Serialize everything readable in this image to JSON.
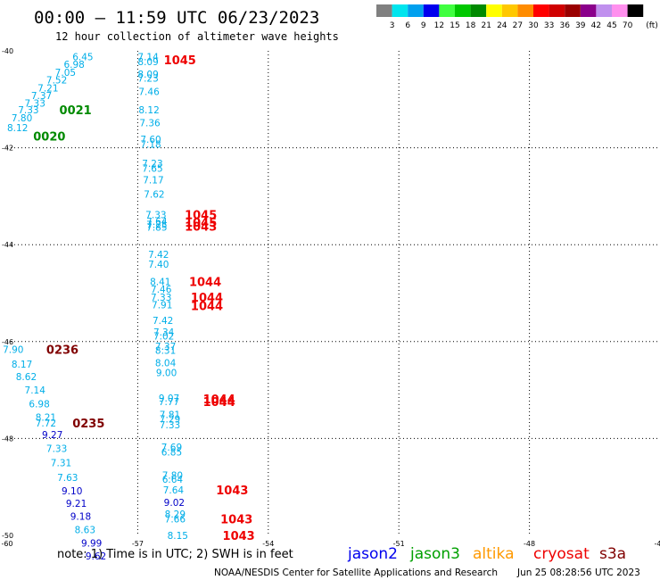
{
  "header": {
    "title": "00:00 – 11:59 UTC 06/23/2023",
    "subtitle": "12 hour collection of altimeter wave heights"
  },
  "legend_scale": {
    "unit": "(ft)",
    "entries": [
      {
        "label": "3",
        "color": "#808080"
      },
      {
        "label": "6",
        "color": "#00e5ee"
      },
      {
        "label": "9",
        "color": "#00a0ee"
      },
      {
        "label": "12",
        "color": "#0000ee"
      },
      {
        "label": "15",
        "color": "#40ff40"
      },
      {
        "label": "18",
        "color": "#00c800"
      },
      {
        "label": "21",
        "color": "#008a00"
      },
      {
        "label": "24",
        "color": "#ffff00"
      },
      {
        "label": "27",
        "color": "#ffc800"
      },
      {
        "label": "30",
        "color": "#ff8c00"
      },
      {
        "label": "33",
        "color": "#ff0000"
      },
      {
        "label": "36",
        "color": "#d00000"
      },
      {
        "label": "39",
        "color": "#9a0000"
      },
      {
        "label": "42",
        "color": "#8b008b"
      },
      {
        "label": "45",
        "color": "#c090ee"
      },
      {
        "label": "70",
        "color": "#ff90ee"
      },
      {
        "label": "",
        "color": "#000000"
      }
    ]
  },
  "satellites": [
    {
      "name": "jason2",
      "color": "#0000ee"
    },
    {
      "name": "jason3",
      "color": "#00a000"
    },
    {
      "name": "altika",
      "color": "#ff9900"
    },
    {
      "name": "cryosat",
      "color": "#ee0000"
    },
    {
      "name": "s3a",
      "color": "#800000"
    }
  ],
  "footer": {
    "note": "note:  1) Time is in UTC; 2) SWH is in feet",
    "credit": "NOAA/NESDIS Center for Satellite Applications and Research",
    "timestamp": "Jun 25 08:28:56 UTC 2023"
  },
  "chart_data": {
    "type": "scatter",
    "title": "00:00 – 11:59 UTC 06/23/2023",
    "subtitle": "12 hour collection of altimeter wave heights",
    "unit": "ft",
    "x_ticks": [
      "-60",
      "-57",
      "-54",
      "-51",
      "-48",
      "-45"
    ],
    "y_ticks": [
      "-40",
      "-42",
      "-44",
      "-46",
      "-48",
      "-50"
    ],
    "xlim": [
      -60,
      -45
    ],
    "ylim": [
      -50,
      -40
    ],
    "grid": true,
    "colors": {
      "cyan": "#00aee8",
      "blue": "#0000c8",
      "green": "#008a00",
      "red": "#ee0000",
      "maroon": "#800000"
    },
    "points": [
      {
        "lon": -58.5,
        "lat": -40.12,
        "v": "6.45",
        "c": "cyan"
      },
      {
        "lon": -58.7,
        "lat": -40.28,
        "v": "6.98",
        "c": "cyan"
      },
      {
        "lon": -58.9,
        "lat": -40.44,
        "v": "7.05",
        "c": "cyan"
      },
      {
        "lon": -59.1,
        "lat": -40.6,
        "v": "7.52",
        "c": "cyan"
      },
      {
        "lon": -59.3,
        "lat": -40.76,
        "v": "7.21",
        "c": "cyan"
      },
      {
        "lon": -59.45,
        "lat": -40.92,
        "v": "7.37",
        "c": "cyan"
      },
      {
        "lon": -59.6,
        "lat": -41.08,
        "v": "7.33",
        "c": "cyan"
      },
      {
        "lon": -59.75,
        "lat": -41.22,
        "v": "7.33",
        "c": "cyan"
      },
      {
        "lon": -59.9,
        "lat": -41.38,
        "v": "7.80",
        "c": "cyan"
      },
      {
        "lon": -60.0,
        "lat": -41.58,
        "v": "8.12",
        "c": "cyan"
      },
      {
        "lon": -57.0,
        "lat": -40.12,
        "v": "7.14",
        "c": "cyan"
      },
      {
        "lon": -57.0,
        "lat": -40.22,
        "v": "8.09",
        "c": "cyan"
      },
      {
        "lon": -57.0,
        "lat": -40.48,
        "v": "8.09",
        "c": "cyan"
      },
      {
        "lon": -57.0,
        "lat": -40.56,
        "v": "7.23",
        "c": "cyan"
      },
      {
        "lon": -56.98,
        "lat": -40.84,
        "v": "7.46",
        "c": "cyan"
      },
      {
        "lon": -56.98,
        "lat": -41.22,
        "v": "8.12",
        "c": "cyan"
      },
      {
        "lon": -56.96,
        "lat": -41.48,
        "v": "7.36",
        "c": "cyan"
      },
      {
        "lon": -56.94,
        "lat": -41.82,
        "v": "7.60",
        "c": "cyan"
      },
      {
        "lon": -56.94,
        "lat": -41.92,
        "v": "7.18",
        "c": "cyan"
      },
      {
        "lon": -56.9,
        "lat": -42.32,
        "v": "7.23",
        "c": "cyan"
      },
      {
        "lon": -56.9,
        "lat": -42.42,
        "v": "7.65",
        "c": "cyan"
      },
      {
        "lon": -56.88,
        "lat": -42.66,
        "v": "7.17",
        "c": "cyan"
      },
      {
        "lon": -56.86,
        "lat": -42.96,
        "v": "7.62",
        "c": "cyan"
      },
      {
        "lon": -56.82,
        "lat": -43.38,
        "v": "7.33",
        "c": "cyan"
      },
      {
        "lon": -56.8,
        "lat": -43.52,
        "v": "7.64",
        "c": "cyan"
      },
      {
        "lon": -56.8,
        "lat": -43.58,
        "v": "7.25",
        "c": "cyan"
      },
      {
        "lon": -56.8,
        "lat": -43.64,
        "v": "7.85",
        "c": "cyan"
      },
      {
        "lon": -56.76,
        "lat": -44.2,
        "v": "7.42",
        "c": "cyan"
      },
      {
        "lon": -56.76,
        "lat": -44.4,
        "v": "7.40",
        "c": "cyan"
      },
      {
        "lon": -56.72,
        "lat": -44.76,
        "v": "8.41",
        "c": "cyan"
      },
      {
        "lon": -56.7,
        "lat": -44.92,
        "v": "7.46",
        "c": "cyan"
      },
      {
        "lon": -56.7,
        "lat": -45.08,
        "v": "7.33",
        "c": "cyan"
      },
      {
        "lon": -56.68,
        "lat": -45.24,
        "v": "7.91",
        "c": "cyan"
      },
      {
        "lon": -56.66,
        "lat": -45.56,
        "v": "7.42",
        "c": "cyan"
      },
      {
        "lon": -56.64,
        "lat": -45.8,
        "v": "7.34",
        "c": "cyan"
      },
      {
        "lon": -56.64,
        "lat": -45.88,
        "v": "7.02",
        "c": "cyan"
      },
      {
        "lon": -56.6,
        "lat": -46.1,
        "v": "7.37",
        "c": "cyan"
      },
      {
        "lon": -56.6,
        "lat": -46.18,
        "v": "8.31",
        "c": "cyan"
      },
      {
        "lon": -56.6,
        "lat": -46.44,
        "v": "8.04",
        "c": "cyan"
      },
      {
        "lon": -56.58,
        "lat": -46.64,
        "v": "9.00",
        "c": "cyan"
      },
      {
        "lon": -56.52,
        "lat": -47.16,
        "v": "9.07",
        "c": "cyan"
      },
      {
        "lon": -56.52,
        "lat": -47.24,
        "v": "7.77",
        "c": "cyan"
      },
      {
        "lon": -56.5,
        "lat": -47.5,
        "v": "7.81",
        "c": "cyan"
      },
      {
        "lon": -56.5,
        "lat": -47.6,
        "v": "7.29",
        "c": "cyan"
      },
      {
        "lon": -56.5,
        "lat": -47.72,
        "v": "7.33",
        "c": "cyan"
      },
      {
        "lon": -56.46,
        "lat": -48.18,
        "v": "7.69",
        "c": "cyan"
      },
      {
        "lon": -56.46,
        "lat": -48.28,
        "v": "6.85",
        "c": "cyan"
      },
      {
        "lon": -56.44,
        "lat": -48.76,
        "v": "7.80",
        "c": "cyan"
      },
      {
        "lon": -56.44,
        "lat": -48.84,
        "v": "6.64",
        "c": "cyan"
      },
      {
        "lon": -56.42,
        "lat": -49.06,
        "v": "7.64",
        "c": "cyan"
      },
      {
        "lon": -56.4,
        "lat": -49.32,
        "v": "9.02",
        "c": "blue"
      },
      {
        "lon": -56.38,
        "lat": -49.56,
        "v": "8.29",
        "c": "cyan"
      },
      {
        "lon": -56.38,
        "lat": -49.66,
        "v": "7.66",
        "c": "cyan"
      },
      {
        "lon": -56.32,
        "lat": -50.0,
        "v": "8.15",
        "c": "cyan"
      },
      {
        "lon": -60.1,
        "lat": -46.16,
        "v": "7.90",
        "c": "cyan"
      },
      {
        "lon": -59.9,
        "lat": -46.46,
        "v": "8.17",
        "c": "cyan"
      },
      {
        "lon": -59.8,
        "lat": -46.72,
        "v": "8.62",
        "c": "cyan"
      },
      {
        "lon": -59.6,
        "lat": -47.0,
        "v": "7.14",
        "c": "cyan"
      },
      {
        "lon": -59.5,
        "lat": -47.28,
        "v": "6.98",
        "c": "cyan"
      },
      {
        "lon": -59.35,
        "lat": -47.56,
        "v": "8.21",
        "c": "cyan"
      },
      {
        "lon": -59.35,
        "lat": -47.68,
        "v": "7.72",
        "c": "cyan"
      },
      {
        "lon": -59.2,
        "lat": -47.92,
        "v": "9.27",
        "c": "blue"
      },
      {
        "lon": -59.1,
        "lat": -48.2,
        "v": "7.33",
        "c": "cyan"
      },
      {
        "lon": -59.0,
        "lat": -48.5,
        "v": "7.31",
        "c": "cyan"
      },
      {
        "lon": -58.85,
        "lat": -48.8,
        "v": "7.63",
        "c": "cyan"
      },
      {
        "lon": -58.75,
        "lat": -49.08,
        "v": "9.10",
        "c": "blue"
      },
      {
        "lon": -58.65,
        "lat": -49.34,
        "v": "9.21",
        "c": "blue"
      },
      {
        "lon": -58.55,
        "lat": -49.6,
        "v": "9.18",
        "c": "blue"
      },
      {
        "lon": -58.45,
        "lat": -49.88,
        "v": "8.63",
        "c": "cyan"
      },
      {
        "lon": -58.3,
        "lat": -50.16,
        "v": "9.99",
        "c": "blue"
      },
      {
        "lon": -58.2,
        "lat": -50.42,
        "v": "9.62",
        "c": "blue"
      }
    ],
    "time_labels": [
      {
        "lon": -56.4,
        "lat": -40.18,
        "t": "1045",
        "c": "red"
      },
      {
        "lon": -58.8,
        "lat": -41.22,
        "t": "0021",
        "c": "green"
      },
      {
        "lon": -59.4,
        "lat": -41.76,
        "t": "0020",
        "c": "green"
      },
      {
        "lon": -55.92,
        "lat": -43.38,
        "t": "1045",
        "c": "red"
      },
      {
        "lon": -55.92,
        "lat": -43.54,
        "t": "1045",
        "c": "red"
      },
      {
        "lon": -55.92,
        "lat": -43.62,
        "t": "1043",
        "c": "red"
      },
      {
        "lon": -55.82,
        "lat": -44.76,
        "t": "1044",
        "c": "red"
      },
      {
        "lon": -55.78,
        "lat": -45.08,
        "t": "1044",
        "c": "red"
      },
      {
        "lon": -55.78,
        "lat": -45.26,
        "t": "1044",
        "c": "red"
      },
      {
        "lon": -55.5,
        "lat": -47.18,
        "t": "1044",
        "c": "red"
      },
      {
        "lon": -55.5,
        "lat": -47.24,
        "t": "1044",
        "c": "red"
      },
      {
        "lon": -55.2,
        "lat": -49.06,
        "t": "1043",
        "c": "red"
      },
      {
        "lon": -55.1,
        "lat": -49.66,
        "t": "1043",
        "c": "red"
      },
      {
        "lon": -55.05,
        "lat": -50.0,
        "t": "1043",
        "c": "red"
      },
      {
        "lon": -59.1,
        "lat": -46.16,
        "t": "0236",
        "c": "maroon"
      },
      {
        "lon": -58.5,
        "lat": -47.68,
        "t": "0235",
        "c": "maroon"
      }
    ]
  }
}
